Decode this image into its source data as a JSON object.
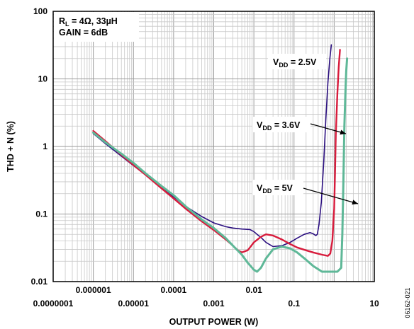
{
  "chart_data": {
    "type": "line",
    "title": "",
    "xlabel": "OUTPUT POWER (W)",
    "ylabel": "THD + N (%)",
    "xscale": "log",
    "yscale": "log",
    "xlim": [
      1e-07,
      10
    ],
    "ylim": [
      0.01,
      100
    ],
    "grid": true,
    "x_tick_labels": [
      {
        "value": 1e-07,
        "label": "0.0000001",
        "row": "lower"
      },
      {
        "value": 1e-06,
        "label": "0.000001",
        "row": "upper"
      },
      {
        "value": 1e-05,
        "label": "0.00001",
        "row": "lower"
      },
      {
        "value": 0.0001,
        "label": "0.0001",
        "row": "upper"
      },
      {
        "value": 0.001,
        "label": "0.001",
        "row": "lower"
      },
      {
        "value": 0.01,
        "label": "0.01",
        "row": "upper"
      },
      {
        "value": 0.1,
        "label": "0.1",
        "row": "lower"
      },
      {
        "value": 10,
        "label": "10",
        "row": "lower"
      }
    ],
    "y_tick_labels": [
      {
        "value": 100,
        "label": "100"
      },
      {
        "value": 10,
        "label": "10"
      },
      {
        "value": 1,
        "label": "1"
      },
      {
        "value": 0.1,
        "label": "0.1"
      },
      {
        "value": 0.01,
        "label": "0.01"
      }
    ],
    "conditions": {
      "line1": {
        "main": "R",
        "sub": "L",
        "rest": " = 4Ω, 33µH"
      },
      "line2": "GAIN = 6dB"
    },
    "annotations": [
      {
        "text": "V",
        "sub": "DD",
        "rest": " = 2.5V",
        "series": "VDD = 2.5V"
      },
      {
        "text": "V",
        "sub": "DD",
        "rest": " = 3.6V",
        "series": "VDD = 3.6V"
      },
      {
        "text": "V",
        "sub": "DD",
        "rest": " = 5V",
        "series": "VDD = 5V"
      }
    ],
    "figure_id": "06162-021",
    "series": [
      {
        "name": "VDD = 2.5V",
        "color": "#2b0f80",
        "points": [
          [
            1e-06,
            1.55
          ],
          [
            2e-06,
            1.1
          ],
          [
            5e-06,
            0.72
          ],
          [
            1e-05,
            0.52
          ],
          [
            2e-05,
            0.38
          ],
          [
            5e-05,
            0.25
          ],
          [
            0.0001,
            0.18
          ],
          [
            0.0002,
            0.13
          ],
          [
            0.0005,
            0.092
          ],
          [
            0.001,
            0.074
          ],
          [
            0.002,
            0.065
          ],
          [
            0.003,
            0.062
          ],
          [
            0.005,
            0.06
          ],
          [
            0.008,
            0.059
          ],
          [
            0.01,
            0.055
          ],
          [
            0.012,
            0.05
          ],
          [
            0.015,
            0.045
          ],
          [
            0.02,
            0.038
          ],
          [
            0.03,
            0.033
          ],
          [
            0.05,
            0.034
          ],
          [
            0.08,
            0.038
          ],
          [
            0.12,
            0.044
          ],
          [
            0.18,
            0.05
          ],
          [
            0.25,
            0.053
          ],
          [
            0.3,
            0.051
          ],
          [
            0.35,
            0.048
          ],
          [
            0.38,
            0.05
          ],
          [
            0.42,
            0.07
          ],
          [
            0.48,
            0.15
          ],
          [
            0.55,
            0.6
          ],
          [
            0.62,
            2.5
          ],
          [
            0.7,
            9
          ],
          [
            0.78,
            20
          ],
          [
            0.85,
            32
          ]
        ]
      },
      {
        "name": "VDD = 3.6V",
        "color": "#d81b3c",
        "points": [
          [
            1e-06,
            1.7
          ],
          [
            2e-06,
            1.2
          ],
          [
            5e-06,
            0.75
          ],
          [
            1e-05,
            0.53
          ],
          [
            2e-05,
            0.38
          ],
          [
            5e-05,
            0.24
          ],
          [
            0.0001,
            0.17
          ],
          [
            0.0002,
            0.12
          ],
          [
            0.0005,
            0.078
          ],
          [
            0.001,
            0.058
          ],
          [
            0.002,
            0.042
          ],
          [
            0.003,
            0.034
          ],
          [
            0.004,
            0.029
          ],
          [
            0.005,
            0.027
          ],
          [
            0.007,
            0.029
          ],
          [
            0.01,
            0.038
          ],
          [
            0.015,
            0.046
          ],
          [
            0.02,
            0.05
          ],
          [
            0.03,
            0.048
          ],
          [
            0.05,
            0.042
          ],
          [
            0.08,
            0.036
          ],
          [
            0.12,
            0.032
          ],
          [
            0.2,
            0.029
          ],
          [
            0.3,
            0.027
          ],
          [
            0.5,
            0.025
          ],
          [
            0.7,
            0.024
          ],
          [
            0.8,
            0.026
          ],
          [
            0.9,
            0.04
          ],
          [
            1.0,
            0.12
          ],
          [
            1.05,
            0.4
          ],
          [
            1.1,
            1.5
          ],
          [
            1.2,
            6
          ],
          [
            1.3,
            15
          ],
          [
            1.4,
            27
          ]
        ]
      },
      {
        "name": "VDD = 5V",
        "color": "#5fb898",
        "points": [
          [
            1e-06,
            1.6
          ],
          [
            2e-06,
            1.15
          ],
          [
            5e-06,
            0.78
          ],
          [
            1e-05,
            0.57
          ],
          [
            2e-05,
            0.4
          ],
          [
            5e-05,
            0.26
          ],
          [
            0.0001,
            0.19
          ],
          [
            0.0002,
            0.13
          ],
          [
            0.0005,
            0.083
          ],
          [
            0.001,
            0.062
          ],
          [
            0.002,
            0.044
          ],
          [
            0.003,
            0.034
          ],
          [
            0.005,
            0.025
          ],
          [
            0.007,
            0.019
          ],
          [
            0.01,
            0.015
          ],
          [
            0.012,
            0.014
          ],
          [
            0.015,
            0.016
          ],
          [
            0.02,
            0.022
          ],
          [
            0.03,
            0.03
          ],
          [
            0.05,
            0.033
          ],
          [
            0.08,
            0.031
          ],
          [
            0.12,
            0.027
          ],
          [
            0.2,
            0.021
          ],
          [
            0.3,
            0.017
          ],
          [
            0.5,
            0.014
          ],
          [
            0.8,
            0.014
          ],
          [
            1.2,
            0.014
          ],
          [
            1.5,
            0.016
          ],
          [
            1.6,
            0.05
          ],
          [
            1.7,
            0.3
          ],
          [
            1.8,
            2
          ],
          [
            1.9,
            6
          ],
          [
            2.0,
            13
          ],
          [
            2.1,
            20
          ]
        ]
      }
    ]
  }
}
